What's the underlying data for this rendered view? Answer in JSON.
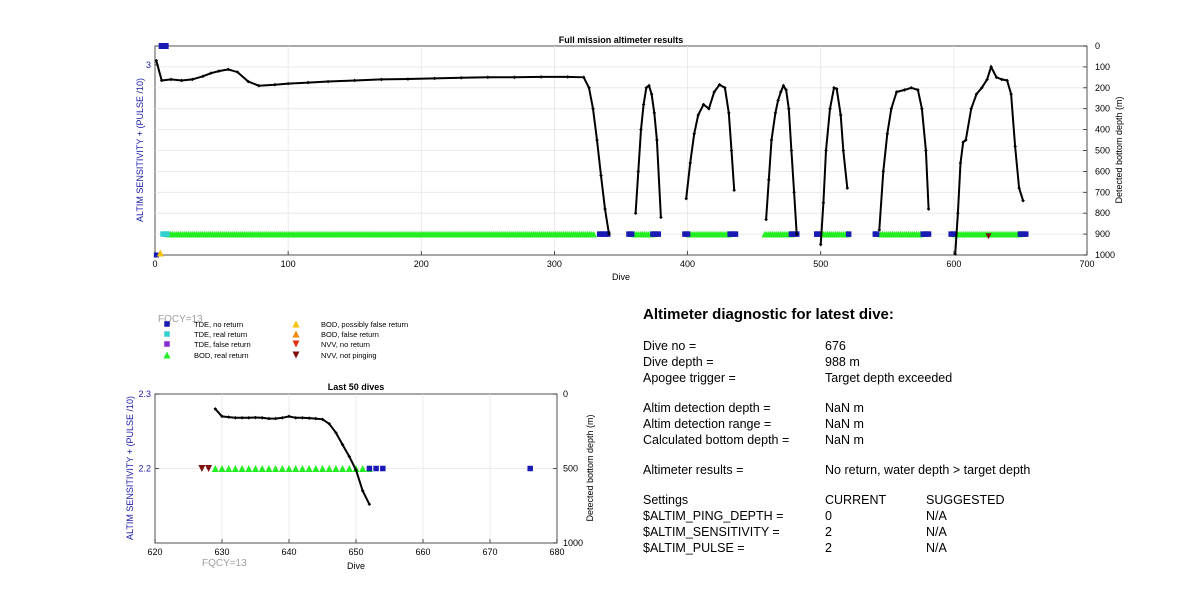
{
  "chart_data": [
    {
      "type": "scatter",
      "title": "Full mission altimeter results",
      "xlabel": "Dive",
      "ylabel": "ALTIM SENSITIVITY + (PULSE /10)",
      "y2label": "Detected bottom depth (m)",
      "xlim": [
        0,
        700
      ],
      "xticks": [
        0,
        100,
        200,
        300,
        400,
        500,
        600,
        700
      ],
      "ylim": [
        2.0,
        3.1
      ],
      "yticks": [
        3
      ],
      "y2lim": [
        0,
        1000
      ],
      "y2ticks": [
        0,
        100,
        200,
        300,
        400,
        500,
        600,
        700,
        800,
        900,
        1000
      ],
      "grid": true,
      "annotation": "FQCY=13",
      "bottom_depth_segments": [
        [
          [
            1,
            70
          ],
          [
            5,
            165
          ],
          [
            12,
            160
          ],
          [
            20,
            165
          ],
          [
            28,
            160
          ],
          [
            36,
            145
          ],
          [
            42,
            130
          ],
          [
            48,
            120
          ],
          [
            55,
            112
          ],
          [
            62,
            125
          ],
          [
            70,
            170
          ],
          [
            78,
            190
          ],
          [
            90,
            185
          ],
          [
            100,
            180
          ],
          [
            115,
            175
          ],
          [
            130,
            170
          ],
          [
            150,
            165
          ],
          [
            170,
            160
          ],
          [
            190,
            158
          ],
          [
            210,
            155
          ],
          [
            230,
            152
          ],
          [
            250,
            150
          ],
          [
            270,
            150
          ],
          [
            290,
            148
          ],
          [
            310,
            148
          ],
          [
            322,
            150
          ],
          [
            326,
            200
          ],
          [
            329,
            300
          ],
          [
            332,
            450
          ],
          [
            335,
            620
          ],
          [
            338,
            780
          ],
          [
            341,
            900
          ]
        ],
        [
          [
            361,
            800
          ],
          [
            363,
            600
          ],
          [
            365,
            400
          ],
          [
            367,
            280
          ],
          [
            369,
            200
          ],
          [
            371,
            190
          ],
          [
            373,
            230
          ],
          [
            375,
            320
          ],
          [
            377,
            450
          ],
          [
            380,
            820
          ]
        ],
        [
          [
            399,
            730
          ],
          [
            402,
            560
          ],
          [
            405,
            420
          ],
          [
            408,
            330
          ],
          [
            412,
            280
          ],
          [
            416,
            300
          ],
          [
            420,
            220
          ],
          [
            424,
            185
          ],
          [
            428,
            200
          ],
          [
            431,
            320
          ],
          [
            433,
            500
          ],
          [
            435,
            690
          ]
        ],
        [
          [
            459,
            830
          ],
          [
            461,
            640
          ],
          [
            463,
            450
          ],
          [
            466,
            320
          ],
          [
            468,
            260
          ],
          [
            470,
            220
          ],
          [
            472,
            190
          ],
          [
            474,
            210
          ],
          [
            476,
            300
          ],
          [
            478,
            500
          ],
          [
            480,
            700
          ],
          [
            482,
            900
          ]
        ],
        [
          [
            500,
            950
          ],
          [
            502,
            750
          ],
          [
            504,
            500
          ],
          [
            507,
            300
          ],
          [
            510,
            200
          ],
          [
            512,
            205
          ],
          [
            515,
            330
          ],
          [
            517,
            500
          ],
          [
            520,
            680
          ]
        ],
        [
          [
            544,
            880
          ],
          [
            547,
            600
          ],
          [
            550,
            420
          ],
          [
            553,
            300
          ],
          [
            557,
            220
          ],
          [
            563,
            210
          ],
          [
            568,
            200
          ],
          [
            573,
            210
          ],
          [
            576,
            300
          ],
          [
            579,
            500
          ],
          [
            581,
            780
          ]
        ],
        [
          [
            601,
            995
          ],
          [
            603,
            800
          ],
          [
            605,
            560
          ],
          [
            607,
            460
          ],
          [
            609,
            450
          ],
          [
            613,
            300
          ],
          [
            617,
            230
          ],
          [
            621,
            200
          ],
          [
            625,
            160
          ],
          [
            628,
            100
          ],
          [
            632,
            150
          ],
          [
            636,
            160
          ],
          [
            640,
            165
          ],
          [
            643,
            230
          ],
          [
            646,
            480
          ],
          [
            649,
            680
          ],
          [
            652,
            740
          ]
        ]
      ],
      "tde_no_return_color": "#1919b3",
      "tde_real_return_color": "#33d0d0",
      "bod_real_return_color": "#22ee22",
      "tde_no_return_dives": [
        4,
        5,
        7,
        334,
        336,
        338,
        340,
        356,
        358,
        374,
        376,
        378,
        398,
        400,
        432,
        434,
        436,
        478,
        480,
        482,
        497,
        498,
        521,
        541,
        542,
        577,
        579,
        581,
        598,
        600,
        650,
        652,
        654
      ],
      "tde_real_return_dives": [
        6,
        8,
        9
      ],
      "bod_real_return_ranges": [
        [
          10,
          330
        ],
        [
          360,
          374
        ],
        [
          401,
          431
        ],
        [
          458,
          478
        ],
        [
          502,
          520
        ],
        [
          545,
          576
        ],
        [
          601,
          650
        ]
      ],
      "misc_points": [
        {
          "series": "BOD, possibly false return",
          "dive": 4,
          "y": 2.0
        },
        {
          "series": "NVV, not pinging",
          "dive": 626,
          "depth": 910
        }
      ]
    },
    {
      "type": "scatter",
      "title": "Last 50 dives",
      "xlabel": "Dive",
      "ylabel": "ALTIM SENSITIVITY + (PULSE /10)",
      "y2label": "Detected bottom depth (m)",
      "xlim": [
        620,
        680
      ],
      "xticks": [
        620,
        630,
        640,
        650,
        660,
        670,
        680
      ],
      "ylim": [
        2.1,
        2.3
      ],
      "yticks": [
        2.2,
        2.3
      ],
      "y2lim": [
        0,
        1000
      ],
      "y2ticks": [
        0,
        500,
        1000
      ],
      "grid": true,
      "annotation": "FQCY=13",
      "bottom_depth": [
        [
          629,
          100
        ],
        [
          630,
          150
        ],
        [
          631,
          155
        ],
        [
          632,
          160
        ],
        [
          633,
          160
        ],
        [
          634,
          160
        ],
        [
          635,
          158
        ],
        [
          636,
          160
        ],
        [
          637,
          165
        ],
        [
          638,
          165
        ],
        [
          639,
          160
        ],
        [
          640,
          150
        ],
        [
          641,
          160
        ],
        [
          642,
          160
        ],
        [
          643,
          162
        ],
        [
          644,
          165
        ],
        [
          645,
          170
        ],
        [
          646,
          200
        ],
        [
          647,
          260
        ],
        [
          648,
          340
        ],
        [
          649,
          420
        ],
        [
          650,
          510
        ],
        [
          651,
          650
        ],
        [
          652,
          740
        ]
      ],
      "nvv_not_pinging_dives": [
        627,
        628
      ],
      "bod_real_return_dives": [
        629,
        630,
        631,
        632,
        633,
        634,
        635,
        636,
        637,
        638,
        639,
        640,
        641,
        642,
        643,
        644,
        645,
        646,
        647,
        648,
        649,
        650,
        651,
        652
      ],
      "tde_no_return_dives": [
        652,
        653,
        654,
        676
      ],
      "marker_y": 2.2
    }
  ],
  "legend": [
    {
      "label": "TDE, no return",
      "color": "#1919b3",
      "shape": "square"
    },
    {
      "label": "TDE, real return",
      "color": "#33d0d0",
      "shape": "square"
    },
    {
      "label": "TDE, false return",
      "color": "#8a2bd2",
      "shape": "square"
    },
    {
      "label": "BOD, real return",
      "color": "#22ee22",
      "shape": "triangle-up"
    },
    {
      "label": "BOD, possibly false return",
      "color": "#f2c200",
      "shape": "triangle-up"
    },
    {
      "label": "BOD, false return",
      "color": "#f08a00",
      "shape": "triangle-up"
    },
    {
      "label": "NVV, no return",
      "color": "#e03010",
      "shape": "triangle-down"
    },
    {
      "label": "NVV, not pinging",
      "color": "#801010",
      "shape": "triangle-down"
    }
  ],
  "legend_fqcy": "FQCY=13",
  "diagnostic": {
    "title": "Altimeter diagnostic for latest dive:",
    "dive_no_label": "Dive no =",
    "dive_no": "676",
    "dive_depth_label": "Dive depth =",
    "dive_depth": "988 m",
    "apogee_label": "Apogee trigger =",
    "apogee": "Target depth exceeded",
    "det_depth_label": "Altim detection depth =",
    "det_depth": "NaN m",
    "det_range_label": "Altim detection range =",
    "det_range": "NaN m",
    "calc_depth_label": "Calculated bottom depth =",
    "calc_depth": "NaN m",
    "results_label": "Altimeter results =",
    "results": "No return, water depth > target depth",
    "settings_label": "Settings",
    "current_label": "CURRENT",
    "suggested_label": "SUGGESTED",
    "ping_depth_label": "$ALTIM_PING_DEPTH =",
    "ping_depth_current": "0",
    "ping_depth_suggested": "N/A",
    "sensitivity_label": "$ALTIM_SENSITIVITY =",
    "sensitivity_current": "2",
    "sensitivity_suggested": "N/A",
    "pulse_label": "$ALTIM_PULSE =",
    "pulse_current": "2",
    "pulse_suggested": "N/A"
  }
}
